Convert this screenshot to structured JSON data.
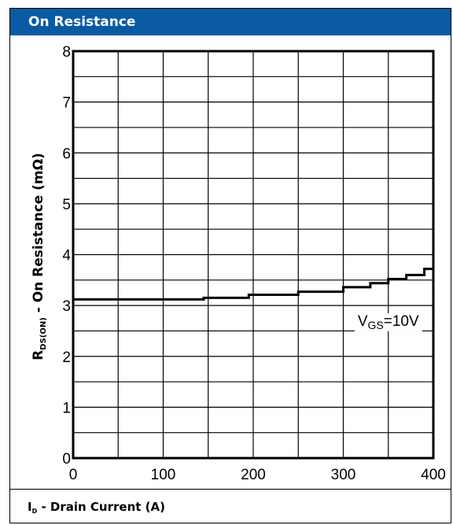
{
  "header": {
    "title": "On Resistance"
  },
  "chart_data": {
    "type": "line",
    "title": "On Resistance",
    "xlabel": {
      "main": "I",
      "sub": "D",
      "rest": " - Drain Current (A)"
    },
    "ylabel": {
      "main": "R",
      "sub": "DS(ON)",
      "rest": " - On Resistance (mΩ)"
    },
    "xlim": [
      0,
      400
    ],
    "ylim": [
      0,
      8
    ],
    "xticks": [
      0,
      100,
      200,
      300,
      400
    ],
    "yticks": [
      0,
      1,
      2,
      3,
      4,
      5,
      6,
      7,
      8
    ],
    "xtick_labels": [
      "0",
      "100",
      "200",
      "300",
      "400"
    ],
    "ytick_labels": [
      "0",
      "1",
      "2",
      "3",
      "4",
      "5",
      "6",
      "7",
      "8"
    ],
    "grid": true,
    "series": [
      {
        "x": [
          0,
          50,
          100,
          145,
          195,
          250,
          300,
          330,
          350,
          370,
          390,
          400
        ],
        "y": [
          3.12,
          3.12,
          3.12,
          3.15,
          3.21,
          3.27,
          3.36,
          3.44,
          3.52,
          3.6,
          3.72,
          3.82
        ]
      }
    ],
    "annotation": {
      "main": "V",
      "sub": "GS",
      "rest": "=10V",
      "x": 350,
      "y": 2.6
    }
  }
}
